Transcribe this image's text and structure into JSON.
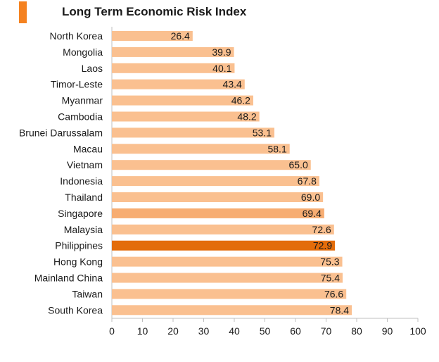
{
  "chart_data": {
    "type": "bar",
    "orientation": "horizontal",
    "title": "Long Term Economic Risk Index",
    "categories": [
      "North Korea",
      "Mongolia",
      "Laos",
      "Timor-Leste",
      "Myanmar",
      "Cambodia",
      "Brunei Darussalam",
      "Macau",
      "Vietnam",
      "Indonesia",
      "Thailand",
      "Singapore",
      "Malaysia",
      "Philippines",
      "Hong Kong",
      "Mainland China",
      "Taiwan",
      "South Korea"
    ],
    "values": [
      26.4,
      39.9,
      40.1,
      43.4,
      46.2,
      48.2,
      53.1,
      58.1,
      65.0,
      67.8,
      69.0,
      69.4,
      72.6,
      72.9,
      75.3,
      75.4,
      76.6,
      78.4
    ],
    "value_labels": [
      "26.4",
      "39.9",
      "40.1",
      "43.4",
      "46.2",
      "48.2",
      "53.1",
      "58.1",
      "65.0",
      "67.8",
      "69.0",
      "69.4",
      "72.6",
      "72.9",
      "75.3",
      "75.4",
      "76.6",
      "78.4"
    ],
    "bar_colors": [
      "#fac090",
      "#fac090",
      "#fac090",
      "#fac090",
      "#fac090",
      "#fac090",
      "#fac090",
      "#fac090",
      "#fac090",
      "#fac090",
      "#fac090",
      "#f7ad72",
      "#fac090",
      "#e36c0a",
      "#fac090",
      "#fac090",
      "#fac090",
      "#fac090"
    ],
    "xlim": [
      0,
      100
    ],
    "xticks": [
      0,
      10,
      20,
      30,
      40,
      50,
      60,
      70,
      80,
      90,
      100
    ],
    "xlabel": "",
    "ylabel": "",
    "grid": false,
    "legend": "none"
  },
  "colors": {
    "title_marker": "#f58220",
    "axis": "#bfbfbf",
    "text": "#1a1a1a"
  }
}
